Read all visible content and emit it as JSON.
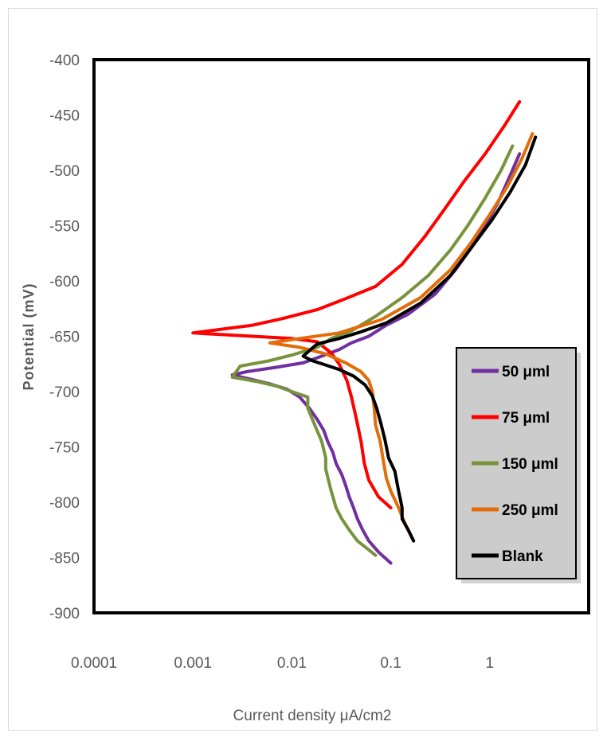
{
  "chart_data": {
    "type": "line",
    "title": "",
    "xlabel": "Current density μA/cm2",
    "ylabel": "Potential (mV)",
    "x_scale": "log",
    "xlim": [
      0.0001,
      10
    ],
    "ylim": [
      -900,
      -400
    ],
    "x_ticks": [
      {
        "value": 0.0001,
        "label": "0.0001"
      },
      {
        "value": 0.001,
        "label": "0.001"
      },
      {
        "value": 0.01,
        "label": "0.01"
      },
      {
        "value": 0.1,
        "label": "0.1"
      },
      {
        "value": 1,
        "label": "1"
      }
    ],
    "y_ticks": [
      {
        "value": -400,
        "label": "-400"
      },
      {
        "value": -450,
        "label": "-450"
      },
      {
        "value": -500,
        "label": "-500"
      },
      {
        "value": -550,
        "label": "-550"
      },
      {
        "value": -600,
        "label": "-600"
      },
      {
        "value": -650,
        "label": "-650"
      },
      {
        "value": -700,
        "label": "-700"
      },
      {
        "value": -750,
        "label": "-750"
      },
      {
        "value": -800,
        "label": "-800"
      },
      {
        "value": -850,
        "label": "-850"
      },
      {
        "value": -900,
        "label": "-900"
      }
    ],
    "grid": false,
    "legend_position": "right",
    "series": [
      {
        "name": "50 μml",
        "color": "#7030a0",
        "points": [
          [
            2.0,
            -485
          ],
          [
            1.6,
            -505
          ],
          [
            1.2,
            -530
          ],
          [
            0.9,
            -550
          ],
          [
            0.65,
            -570
          ],
          [
            0.45,
            -590
          ],
          [
            0.28,
            -612
          ],
          [
            0.15,
            -630
          ],
          [
            0.09,
            -640
          ],
          [
            0.06,
            -650
          ],
          [
            0.04,
            -656
          ],
          [
            0.03,
            -662
          ],
          [
            0.02,
            -668
          ],
          [
            0.013,
            -674
          ],
          [
            0.007,
            -678
          ],
          [
            0.0035,
            -682
          ],
          [
            0.0025,
            -685
          ],
          [
            0.0035,
            -688
          ],
          [
            0.006,
            -693
          ],
          [
            0.009,
            -698
          ],
          [
            0.012,
            -705
          ],
          [
            0.015,
            -715
          ],
          [
            0.018,
            -725
          ],
          [
            0.021,
            -735
          ],
          [
            0.023,
            -745
          ],
          [
            0.026,
            -755
          ],
          [
            0.028,
            -765
          ],
          [
            0.032,
            -775
          ],
          [
            0.035,
            -785
          ],
          [
            0.038,
            -795
          ],
          [
            0.042,
            -805
          ],
          [
            0.046,
            -815
          ],
          [
            0.052,
            -825
          ],
          [
            0.06,
            -835
          ],
          [
            0.075,
            -845
          ],
          [
            0.1,
            -855
          ]
        ]
      },
      {
        "name": "75 μml",
        "color": "#ff0000",
        "points": [
          [
            2.0,
            -438
          ],
          [
            1.4,
            -460
          ],
          [
            0.9,
            -485
          ],
          [
            0.55,
            -510
          ],
          [
            0.35,
            -535
          ],
          [
            0.22,
            -560
          ],
          [
            0.13,
            -585
          ],
          [
            0.07,
            -605
          ],
          [
            0.035,
            -616
          ],
          [
            0.018,
            -626
          ],
          [
            0.008,
            -634
          ],
          [
            0.004,
            -640
          ],
          [
            0.001,
            -647
          ],
          [
            0.004,
            -650
          ],
          [
            0.01,
            -652
          ],
          [
            0.018,
            -655
          ],
          [
            0.025,
            -665
          ],
          [
            0.03,
            -675
          ],
          [
            0.036,
            -690
          ],
          [
            0.04,
            -705
          ],
          [
            0.045,
            -725
          ],
          [
            0.05,
            -745
          ],
          [
            0.054,
            -765
          ],
          [
            0.06,
            -780
          ],
          [
            0.075,
            -795
          ],
          [
            0.1,
            -805
          ]
        ]
      },
      {
        "name": "150 μml",
        "color": "#77933c",
        "points": [
          [
            1.7,
            -478
          ],
          [
            1.3,
            -500
          ],
          [
            0.9,
            -525
          ],
          [
            0.6,
            -550
          ],
          [
            0.4,
            -572
          ],
          [
            0.24,
            -595
          ],
          [
            0.13,
            -615
          ],
          [
            0.07,
            -632
          ],
          [
            0.04,
            -645
          ],
          [
            0.025,
            -652
          ],
          [
            0.018,
            -660
          ],
          [
            0.01,
            -667
          ],
          [
            0.006,
            -672
          ],
          [
            0.003,
            -677
          ],
          [
            0.0025,
            -687
          ],
          [
            0.0045,
            -691
          ],
          [
            0.007,
            -695
          ],
          [
            0.01,
            -700
          ],
          [
            0.0145,
            -705
          ],
          [
            0.0145,
            -715
          ],
          [
            0.017,
            -730
          ],
          [
            0.02,
            -745
          ],
          [
            0.022,
            -760
          ],
          [
            0.022,
            -770
          ],
          [
            0.025,
            -790
          ],
          [
            0.028,
            -805
          ],
          [
            0.032,
            -815
          ],
          [
            0.038,
            -825
          ],
          [
            0.046,
            -835
          ],
          [
            0.058,
            -842
          ],
          [
            0.07,
            -848
          ]
        ]
      },
      {
        "name": "250 μml",
        "color": "#e36c09",
        "points": [
          [
            2.7,
            -467
          ],
          [
            2.1,
            -490
          ],
          [
            1.5,
            -515
          ],
          [
            1.0,
            -540
          ],
          [
            0.65,
            -565
          ],
          [
            0.4,
            -590
          ],
          [
            0.2,
            -615
          ],
          [
            0.08,
            -635
          ],
          [
            0.03,
            -647
          ],
          [
            0.012,
            -652
          ],
          [
            0.006,
            -656
          ],
          [
            0.012,
            -660
          ],
          [
            0.022,
            -666
          ],
          [
            0.035,
            -674
          ],
          [
            0.05,
            -682
          ],
          [
            0.06,
            -690
          ],
          [
            0.065,
            -700
          ],
          [
            0.068,
            -715
          ],
          [
            0.07,
            -730
          ],
          [
            0.078,
            -745
          ],
          [
            0.085,
            -765
          ],
          [
            0.09,
            -778
          ],
          [
            0.1,
            -790
          ],
          [
            0.12,
            -805
          ],
          [
            0.14,
            -820
          ],
          [
            0.17,
            -835
          ]
        ]
      },
      {
        "name": "Blank",
        "color": "#000000",
        "points": [
          [
            2.9,
            -470
          ],
          [
            2.3,
            -495
          ],
          [
            1.6,
            -520
          ],
          [
            1.05,
            -545
          ],
          [
            0.65,
            -570
          ],
          [
            0.4,
            -595
          ],
          [
            0.2,
            -620
          ],
          [
            0.09,
            -638
          ],
          [
            0.05,
            -646
          ],
          [
            0.03,
            -652
          ],
          [
            0.018,
            -657
          ],
          [
            0.015,
            -663
          ],
          [
            0.013,
            -668
          ],
          [
            0.016,
            -672
          ],
          [
            0.022,
            -676
          ],
          [
            0.03,
            -680
          ],
          [
            0.042,
            -686
          ],
          [
            0.055,
            -694
          ],
          [
            0.065,
            -704
          ],
          [
            0.072,
            -715
          ],
          [
            0.08,
            -730
          ],
          [
            0.088,
            -745
          ],
          [
            0.095,
            -760
          ],
          [
            0.11,
            -772
          ],
          [
            0.12,
            -790
          ],
          [
            0.13,
            -805
          ],
          [
            0.13,
            -815
          ],
          [
            0.15,
            -825
          ],
          [
            0.17,
            -835
          ]
        ]
      }
    ]
  }
}
